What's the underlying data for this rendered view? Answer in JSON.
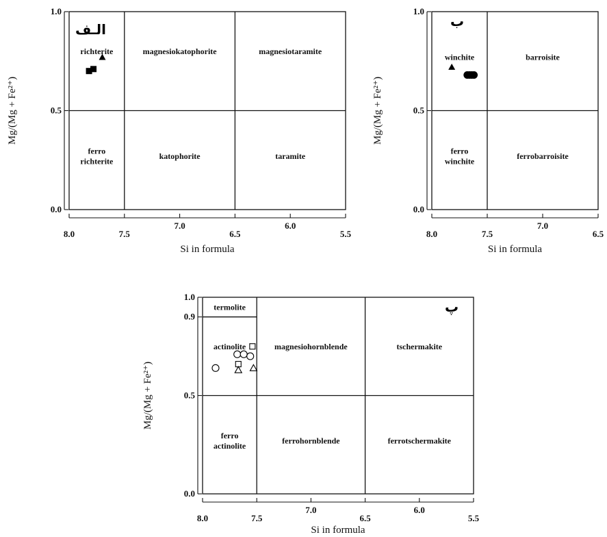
{
  "chart_data": [
    {
      "type": "scatter",
      "panel": "الـف",
      "xlabel": "Si in formula",
      "ylabel": "Mg/(Mg + Fe²⁺)",
      "x_ticks": [
        "8.0",
        "7.5",
        "7.0",
        "6.5",
        "6.0",
        "5.5"
      ],
      "y_ticks": [
        "0.0",
        "0.5",
        "1.0"
      ],
      "xlim": [
        8.0,
        5.5
      ],
      "ylim": [
        0.0,
        1.0
      ],
      "fields": [
        {
          "name": "richterite",
          "lines": [
            "richterite"
          ],
          "x": 7.75,
          "y": 0.8
        },
        {
          "name": "magnesiokatophorite",
          "lines": [
            "magnesiokatophorite"
          ],
          "x": 7.0,
          "y": 0.8
        },
        {
          "name": "magnesiotaramite",
          "lines": [
            "magnesiotaramite"
          ],
          "x": 6.0,
          "y": 0.8
        },
        {
          "name": "ferro richterite",
          "lines": [
            "ferro",
            "richterite"
          ],
          "x": 7.75,
          "y": 0.27
        },
        {
          "name": "katophorite",
          "lines": [
            "katophorite"
          ],
          "x": 7.0,
          "y": 0.27
        },
        {
          "name": "taramite",
          "lines": [
            "taramite"
          ],
          "x": 6.0,
          "y": 0.27
        }
      ],
      "series": [
        {
          "marker": "filled-square",
          "points": [
            [
              7.82,
              0.7
            ],
            [
              7.78,
              0.71
            ]
          ]
        },
        {
          "marker": "filled-triangle",
          "points": [
            [
              7.7,
              0.77
            ]
          ]
        }
      ]
    },
    {
      "type": "scatter",
      "panel": "ب",
      "xlabel": "Si in formula",
      "ylabel": "Mg/(Mg + Fe²⁺)",
      "x_ticks": [
        "8.0",
        "7.5",
        "7.0",
        "6.5"
      ],
      "y_ticks": [
        "0.0",
        "0.5",
        "1.0"
      ],
      "xlim": [
        8.0,
        6.5
      ],
      "ylim": [
        0.0,
        1.0
      ],
      "fields": [
        {
          "name": "winchite",
          "lines": [
            "winchite"
          ],
          "x": 7.75,
          "y": 0.77
        },
        {
          "name": "barroisite",
          "lines": [
            "barroisite"
          ],
          "x": 7.0,
          "y": 0.77
        },
        {
          "name": "ferro winchite",
          "lines": [
            "ferro",
            "winchite"
          ],
          "x": 7.75,
          "y": 0.27
        },
        {
          "name": "ferrobarroisite",
          "lines": [
            "ferrobarroisite"
          ],
          "x": 7.0,
          "y": 0.27
        }
      ],
      "series": [
        {
          "marker": "filled-triangle",
          "points": [
            [
              7.82,
              0.72
            ]
          ]
        },
        {
          "marker": "filled-circle",
          "points": [
            [
              7.68,
              0.68
            ],
            [
              7.66,
              0.68
            ],
            [
              7.64,
              0.68
            ],
            [
              7.62,
              0.68
            ]
          ]
        }
      ]
    },
    {
      "type": "scatter",
      "panel": "پ",
      "xlabel": "Si in formula",
      "ylabel": "Mg/(Mg + Fe²⁺)",
      "x_ticks": [
        "8.0",
        "7.5",
        "7.0",
        "6.5",
        "6.0",
        "5.5"
      ],
      "y_ticks": [
        "0.0",
        "0.5",
        "0.9",
        "1.0"
      ],
      "xlim": [
        8.0,
        5.5
      ],
      "ylim": [
        0.0,
        1.0
      ],
      "fields": [
        {
          "name": "termolite",
          "lines": [
            "termolite"
          ],
          "x": 7.75,
          "y": 0.95
        },
        {
          "name": "actinolite",
          "lines": [
            "actinolite"
          ],
          "x": 7.75,
          "y": 0.75
        },
        {
          "name": "magnesiohornblende",
          "lines": [
            "magnesiohornblende"
          ],
          "x": 7.0,
          "y": 0.75
        },
        {
          "name": "tschermakite",
          "lines": [
            "tschermakite"
          ],
          "x": 6.0,
          "y": 0.75
        },
        {
          "name": "ferro actinolite",
          "lines": [
            "ferro",
            "actinolite"
          ],
          "x": 7.75,
          "y": 0.27
        },
        {
          "name": "ferrohornblende",
          "lines": [
            "ferrohornblende"
          ],
          "x": 7.0,
          "y": 0.27
        },
        {
          "name": "ferrotschermakite",
          "lines": [
            "ferrotschermakite"
          ],
          "x": 6.0,
          "y": 0.27
        }
      ],
      "series": [
        {
          "marker": "open-circle",
          "points": [
            [
              7.88,
              0.64
            ],
            [
              7.68,
              0.71
            ],
            [
              7.62,
              0.71
            ],
            [
              7.56,
              0.7
            ]
          ]
        },
        {
          "marker": "open-square",
          "points": [
            [
              7.67,
              0.66
            ],
            [
              7.54,
              0.75
            ]
          ]
        },
        {
          "marker": "open-triangle",
          "points": [
            [
              7.67,
              0.63
            ],
            [
              7.53,
              0.64
            ]
          ]
        }
      ]
    }
  ]
}
